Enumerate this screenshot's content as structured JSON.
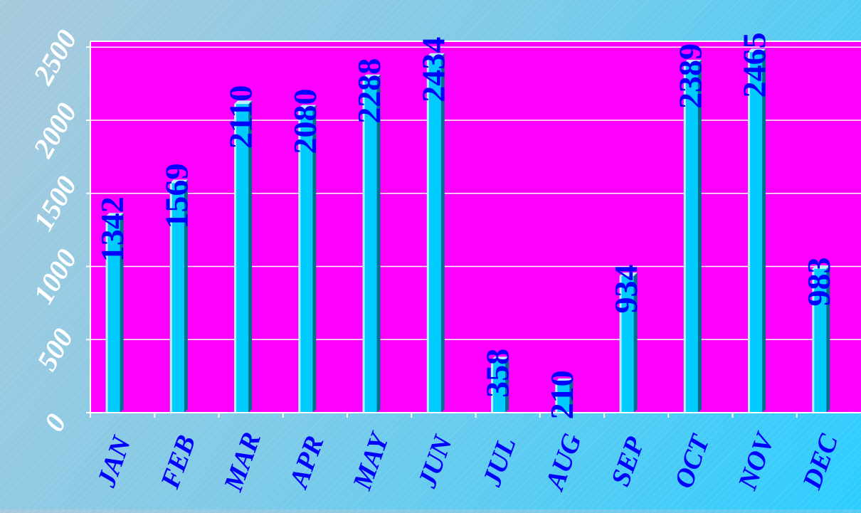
{
  "chart_data": {
    "type": "bar",
    "title": "",
    "xlabel": "",
    "ylabel": "",
    "categories": [
      "JAN",
      "FEB",
      "MAR",
      "APR",
      "MAY",
      "JUN",
      "JUL",
      "AUG",
      "SEP",
      "OCT",
      "NOV",
      "DEC"
    ],
    "values": [
      1342,
      1569,
      2110,
      2080,
      2288,
      2434,
      358,
      210,
      934,
      2389,
      2465,
      983
    ],
    "y_ticks": [
      "0",
      "500",
      "1000",
      "1500",
      "2000",
      "2500"
    ],
    "ylim": [
      0,
      2500
    ],
    "grid": true,
    "legend": "none"
  },
  "colors": {
    "plot_background": "#ff00ff",
    "bar_face": "#00ccff",
    "bar_highlight": "#b8f2ff",
    "bar_side": "#006f8c",
    "data_label": "#0000ff",
    "axis_labels": "#0000ff",
    "y_tick_labels": "#ffffff",
    "gridlines": "#ffffff"
  }
}
